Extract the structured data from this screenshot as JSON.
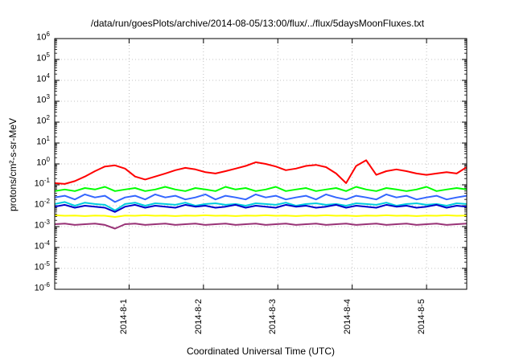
{
  "chart_data": {
    "type": "line",
    "title": "/data/run/goesPlots/archive/2014-08-05/13:00/flux/../flux/5daysMoonFluxes.txt",
    "xlabel": "Coordinated Universal Time (UTC)",
    "ylabel": "protons/cm²-s-sr-MeV",
    "y_scale": "log",
    "ylim": [
      1e-06,
      1000000.0
    ],
    "ytick_labels": [
      {
        "base": "10",
        "exp": "-6"
      },
      {
        "base": "10",
        "exp": "-5"
      },
      {
        "base": "10",
        "exp": "-4"
      },
      {
        "base": "10",
        "exp": "-3"
      },
      {
        "base": "10",
        "exp": "-2"
      },
      {
        "base": "10",
        "exp": "-1"
      },
      {
        "base": "10",
        "exp": "0"
      },
      {
        "base": "10",
        "exp": "1"
      },
      {
        "base": "10",
        "exp": "2"
      },
      {
        "base": "10",
        "exp": "3"
      },
      {
        "base": "10",
        "exp": "4"
      },
      {
        "base": "10",
        "exp": "5"
      },
      {
        "base": "10",
        "exp": "6"
      }
    ],
    "xlim": [
      "2014-07-31 00:00",
      "2014-08-05 13:00"
    ],
    "xtick_labels": [
      "2014-8-1",
      "2014-8-2",
      "2014-8-3",
      "2014-8-4",
      "2014-8-5"
    ],
    "xtick_days": [
      1,
      2,
      3,
      4,
      5
    ],
    "x_start_day": 0.0,
    "x_end_day": 5.54,
    "grid": true,
    "series": [
      {
        "color": "#ff0000",
        "values": [
          0.12,
          0.11,
          0.15,
          0.25,
          0.45,
          0.75,
          0.85,
          0.6,
          0.25,
          0.18,
          0.25,
          0.35,
          0.5,
          0.65,
          0.55,
          0.4,
          0.35,
          0.45,
          0.6,
          0.8,
          1.2,
          1.0,
          0.75,
          0.5,
          0.6,
          0.8,
          0.9,
          0.7,
          0.35,
          0.12,
          0.8,
          1.5,
          0.3,
          0.45,
          0.55,
          0.45,
          0.35,
          0.3,
          0.35,
          0.4,
          0.35,
          0.7
        ]
      },
      {
        "color": "#00ff00",
        "values": [
          0.05,
          0.06,
          0.05,
          0.07,
          0.06,
          0.08,
          0.05,
          0.06,
          0.07,
          0.05,
          0.06,
          0.08,
          0.06,
          0.05,
          0.07,
          0.06,
          0.05,
          0.08,
          0.06,
          0.07,
          0.05,
          0.06,
          0.08,
          0.05,
          0.06,
          0.07,
          0.05,
          0.06,
          0.07,
          0.05,
          0.08,
          0.06,
          0.05,
          0.07,
          0.06,
          0.05,
          0.06,
          0.08,
          0.05,
          0.06,
          0.07,
          0.06
        ]
      },
      {
        "color": "#3366ff",
        "values": [
          0.025,
          0.03,
          0.02,
          0.035,
          0.025,
          0.03,
          0.015,
          0.025,
          0.03,
          0.02,
          0.035,
          0.025,
          0.03,
          0.02,
          0.025,
          0.035,
          0.02,
          0.03,
          0.025,
          0.02,
          0.035,
          0.025,
          0.03,
          0.02,
          0.025,
          0.03,
          0.02,
          0.035,
          0.025,
          0.02,
          0.03,
          0.025,
          0.02,
          0.035,
          0.025,
          0.03,
          0.02,
          0.025,
          0.03,
          0.02,
          0.025,
          0.03
        ]
      },
      {
        "color": "#00ccdd",
        "values": [
          0.012,
          0.015,
          0.01,
          0.014,
          0.012,
          0.011,
          0.006,
          0.012,
          0.014,
          0.01,
          0.013,
          0.012,
          0.011,
          0.014,
          0.01,
          0.012,
          0.013,
          0.011,
          0.012,
          0.01,
          0.013,
          0.012,
          0.011,
          0.014,
          0.01,
          0.012,
          0.013,
          0.011,
          0.012,
          0.01,
          0.013,
          0.012,
          0.011,
          0.014,
          0.01,
          0.012,
          0.013,
          0.011,
          0.012,
          0.01,
          0.013,
          0.012
        ]
      },
      {
        "color": "#0000cc",
        "values": [
          0.009,
          0.011,
          0.008,
          0.01,
          0.009,
          0.008,
          0.005,
          0.009,
          0.011,
          0.008,
          0.01,
          0.009,
          0.008,
          0.011,
          0.009,
          0.01,
          0.008,
          0.009,
          0.011,
          0.008,
          0.01,
          0.009,
          0.008,
          0.011,
          0.009,
          0.01,
          0.008,
          0.009,
          0.011,
          0.008,
          0.01,
          0.009,
          0.008,
          0.011,
          0.009,
          0.01,
          0.008,
          0.009,
          0.011,
          0.008,
          0.01,
          0.009
        ]
      },
      {
        "color": "#ffff00",
        "values": [
          0.0035,
          0.0033,
          0.0034,
          0.0032,
          0.0034,
          0.0033,
          0.0029,
          0.0034,
          0.0033,
          0.0035,
          0.0033,
          0.0034,
          0.0032,
          0.0034,
          0.0033,
          0.0035,
          0.0033,
          0.0034,
          0.0032,
          0.0034,
          0.0033,
          0.0035,
          0.0033,
          0.0034,
          0.0032,
          0.0034,
          0.0033,
          0.0035,
          0.0033,
          0.0034,
          0.0032,
          0.0034,
          0.0033,
          0.0035,
          0.0033,
          0.0034,
          0.0032,
          0.0034,
          0.0033,
          0.0035,
          0.0033,
          0.0034
        ]
      },
      {
        "color": "#993377",
        "values": [
          0.0013,
          0.0014,
          0.0012,
          0.0013,
          0.0014,
          0.0012,
          0.0008,
          0.0013,
          0.0014,
          0.0012,
          0.0013,
          0.0014,
          0.0012,
          0.0013,
          0.0014,
          0.0012,
          0.0013,
          0.0014,
          0.0012,
          0.0013,
          0.0014,
          0.0012,
          0.0013,
          0.0014,
          0.0012,
          0.0013,
          0.0014,
          0.0012,
          0.0013,
          0.0014,
          0.0012,
          0.0013,
          0.0014,
          0.0012,
          0.0013,
          0.0014,
          0.0012,
          0.0013,
          0.0014,
          0.0012,
          0.0013,
          0.0014
        ]
      }
    ]
  }
}
